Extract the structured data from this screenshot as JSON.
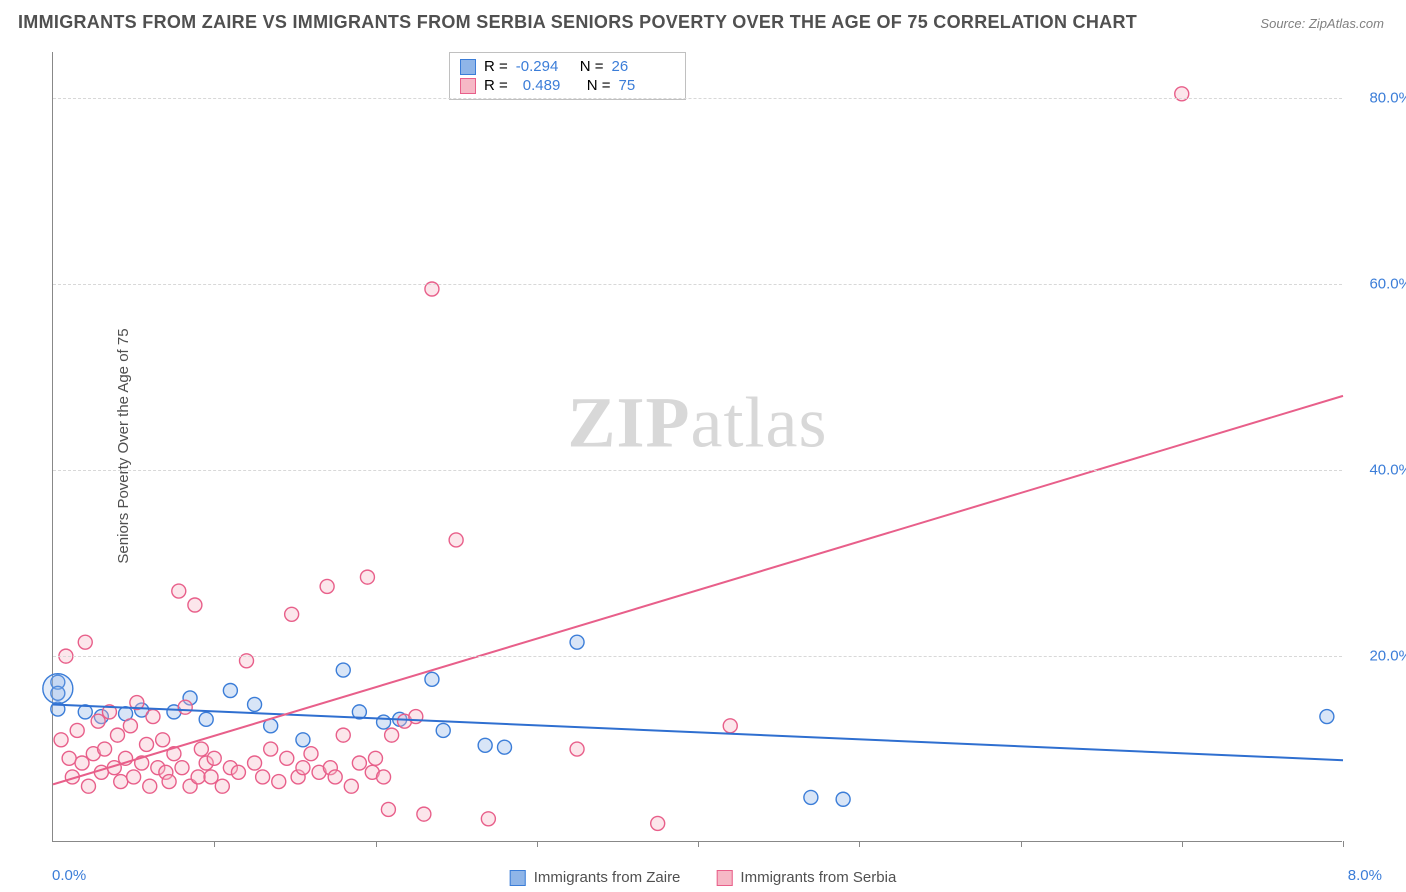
{
  "title": "IMMIGRANTS FROM ZAIRE VS IMMIGRANTS FROM SERBIA SENIORS POVERTY OVER THE AGE OF 75 CORRELATION CHART",
  "source_label": "Source:",
  "source_site": "ZipAtlas.com",
  "watermark_a": "ZIP",
  "watermark_b": "atlas",
  "chart": {
    "type": "scatter-with-regression",
    "background_color": "#ffffff",
    "grid_color": "#d8d8d8",
    "axis_color": "#888888",
    "ylabel": "Seniors Poverty Over the Age of 75",
    "xlim": [
      0,
      8.0
    ],
    "ylim": [
      0,
      85
    ],
    "yticks": [
      20.0,
      40.0,
      60.0,
      80.0
    ],
    "ytick_labels": [
      "20.0%",
      "40.0%",
      "60.0%",
      "80.0%"
    ],
    "xtick_positions": [
      0,
      1,
      2,
      3,
      4,
      5,
      6,
      7,
      8
    ],
    "xaxis_min_label": "0.0%",
    "xaxis_max_label": "8.0%",
    "tick_label_color": "#3b7dd8",
    "tick_label_fontsize": 15,
    "title_fontsize": 18,
    "label_fontsize": 15,
    "marker_radius": 7,
    "marker_opacity": 0.35,
    "line_width": 2
  },
  "series": [
    {
      "name": "Immigrants from Zaire",
      "color_fill": "#8fb5e8",
      "color_stroke": "#3b7dd8",
      "line_color": "#2f6fd0",
      "R": "-0.294",
      "N": "26",
      "trend": {
        "x1": 0.0,
        "y1": 14.8,
        "x2": 8.0,
        "y2": 8.8
      },
      "points": [
        [
          0.03,
          17.2
        ],
        [
          0.03,
          16.0
        ],
        [
          0.03,
          14.3
        ],
        [
          0.2,
          14.0
        ],
        [
          0.3,
          13.5
        ],
        [
          0.45,
          13.8
        ],
        [
          0.55,
          14.2
        ],
        [
          0.75,
          14.0
        ],
        [
          0.85,
          15.5
        ],
        [
          0.95,
          13.2
        ],
        [
          1.1,
          16.3
        ],
        [
          1.25,
          14.8
        ],
        [
          1.35,
          12.5
        ],
        [
          1.55,
          11.0
        ],
        [
          1.8,
          18.5
        ],
        [
          1.9,
          14.0
        ],
        [
          2.05,
          12.9
        ],
        [
          2.15,
          13.2
        ],
        [
          2.35,
          17.5
        ],
        [
          2.42,
          12.0
        ],
        [
          2.68,
          10.4
        ],
        [
          2.8,
          10.2
        ],
        [
          3.25,
          21.5
        ],
        [
          4.7,
          4.8
        ],
        [
          4.9,
          4.6
        ],
        [
          7.9,
          13.5
        ]
      ]
    },
    {
      "name": "Immigrants from Serbia",
      "color_fill": "#f6b8c6",
      "color_stroke": "#e85f8a",
      "line_color": "#e85f8a",
      "R": "0.489",
      "N": "75",
      "trend": {
        "x1": 0.0,
        "y1": 6.2,
        "x2": 8.0,
        "y2": 48.0
      },
      "points": [
        [
          0.05,
          11.0
        ],
        [
          0.08,
          20.0
        ],
        [
          0.1,
          9.0
        ],
        [
          0.12,
          7.0
        ],
        [
          0.15,
          12.0
        ],
        [
          0.18,
          8.5
        ],
        [
          0.2,
          21.5
        ],
        [
          0.22,
          6.0
        ],
        [
          0.25,
          9.5
        ],
        [
          0.28,
          13.0
        ],
        [
          0.3,
          7.5
        ],
        [
          0.32,
          10.0
        ],
        [
          0.35,
          14.0
        ],
        [
          0.38,
          8.0
        ],
        [
          0.4,
          11.5
        ],
        [
          0.42,
          6.5
        ],
        [
          0.45,
          9.0
        ],
        [
          0.48,
          12.5
        ],
        [
          0.5,
          7.0
        ],
        [
          0.52,
          15.0
        ],
        [
          0.55,
          8.5
        ],
        [
          0.58,
          10.5
        ],
        [
          0.6,
          6.0
        ],
        [
          0.62,
          13.5
        ],
        [
          0.65,
          8.0
        ],
        [
          0.68,
          11.0
        ],
        [
          0.7,
          7.5
        ],
        [
          0.72,
          6.5
        ],
        [
          0.75,
          9.5
        ],
        [
          0.78,
          27.0
        ],
        [
          0.8,
          8.0
        ],
        [
          0.82,
          14.5
        ],
        [
          0.85,
          6.0
        ],
        [
          0.88,
          25.5
        ],
        [
          0.9,
          7.0
        ],
        [
          0.92,
          10.0
        ],
        [
          0.95,
          8.5
        ],
        [
          0.98,
          7.0
        ],
        [
          1.0,
          9.0
        ],
        [
          1.05,
          6.0
        ],
        [
          1.1,
          8.0
        ],
        [
          1.15,
          7.5
        ],
        [
          1.2,
          19.5
        ],
        [
          1.25,
          8.5
        ],
        [
          1.3,
          7.0
        ],
        [
          1.35,
          10.0
        ],
        [
          1.4,
          6.5
        ],
        [
          1.45,
          9.0
        ],
        [
          1.48,
          24.5
        ],
        [
          1.52,
          7.0
        ],
        [
          1.55,
          8.0
        ],
        [
          1.6,
          9.5
        ],
        [
          1.65,
          7.5
        ],
        [
          1.7,
          27.5
        ],
        [
          1.72,
          8.0
        ],
        [
          1.75,
          7.0
        ],
        [
          1.8,
          11.5
        ],
        [
          1.85,
          6.0
        ],
        [
          1.9,
          8.5
        ],
        [
          1.95,
          28.5
        ],
        [
          1.98,
          7.5
        ],
        [
          2.0,
          9.0
        ],
        [
          2.05,
          7.0
        ],
        [
          2.08,
          3.5
        ],
        [
          2.1,
          11.5
        ],
        [
          2.18,
          13.0
        ],
        [
          2.25,
          13.5
        ],
        [
          2.3,
          3.0
        ],
        [
          2.35,
          59.5
        ],
        [
          2.5,
          32.5
        ],
        [
          2.7,
          2.5
        ],
        [
          3.25,
          10.0
        ],
        [
          3.75,
          2.0
        ],
        [
          4.2,
          12.5
        ],
        [
          7.0,
          80.5
        ]
      ]
    }
  ],
  "stats_labels": {
    "R": "R =",
    "N": "N ="
  },
  "legend_labels": [
    "Immigrants from Zaire",
    "Immigrants from Serbia"
  ]
}
